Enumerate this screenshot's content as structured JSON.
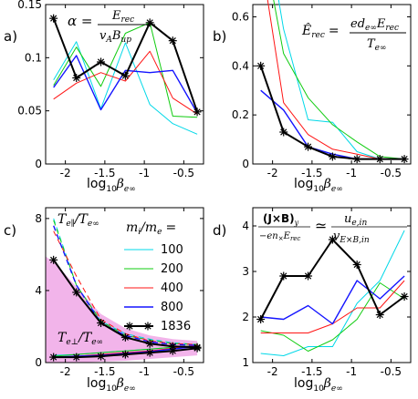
{
  "chart_data": [
    {
      "type": "line",
      "panel_label": "a)",
      "equation": {
        "lhs": "α =",
        "numerator": "E",
        "numerator_sub": "rec",
        "denominator": "v",
        "denominator_sub1": "A",
        "denominator_mid": "B",
        "denominator_sub2": "up"
      },
      "xlabel": "log",
      "xlabel_sub": "10",
      "xlabel_var": "β",
      "xlabel_var_sub": "e∞",
      "x": [
        -2.15,
        -1.86,
        -1.55,
        -1.24,
        -0.93,
        -0.64,
        -0.33
      ],
      "xlim": [
        -2.25,
        -0.25
      ],
      "xticks": [
        "-2",
        "-1.5",
        "-1",
        "-0.5"
      ],
      "xtick_values": [
        -2,
        -1.5,
        -1,
        -0.5
      ],
      "ylim": [
        0,
        0.15
      ],
      "yticks": [
        "0",
        "0.05",
        "0.1",
        "0.15"
      ],
      "ytick_values": [
        0,
        0.05,
        0.1,
        0.15
      ],
      "series": [
        {
          "name": "100",
          "color": "#00d8e8",
          "width": 1,
          "marker": false,
          "values": [
            0.079,
            0.115,
            0.052,
            0.114,
            0.056,
            0.038,
            0.028
          ]
        },
        {
          "name": "200",
          "color": "#10cc10",
          "width": 1,
          "marker": false,
          "values": [
            0.074,
            0.11,
            0.073,
            0.123,
            0.133,
            0.045,
            0.044
          ]
        },
        {
          "name": "400",
          "color": "#ff1414",
          "width": 1,
          "marker": false,
          "values": [
            0.061,
            0.076,
            0.086,
            0.078,
            0.106,
            0.062,
            0.047
          ]
        },
        {
          "name": "800",
          "color": "#1414ff",
          "width": 1.4,
          "marker": false,
          "values": [
            0.072,
            0.102,
            0.051,
            0.088,
            0.086,
            0.088,
            0.048
          ]
        },
        {
          "name": "1836",
          "color": "#000000",
          "width": 2,
          "marker": true,
          "values": [
            0.137,
            0.081,
            0.096,
            0.083,
            0.133,
            0.116,
            0.049
          ]
        }
      ]
    },
    {
      "type": "line",
      "panel_label": "b)",
      "equation": {
        "lhs": "Ê",
        "lhs_sub": "rec",
        "eq": "=",
        "numerator": "ed",
        "numerator_sub1": "e∞",
        "numerator_mid": "E",
        "numerator_sub2": "rec",
        "denominator": "T",
        "denominator_sub": "e∞"
      },
      "xlabel": "log",
      "xlabel_sub": "10",
      "xlabel_var": "β",
      "xlabel_var_sub": "e∞",
      "x": [
        -2.15,
        -1.86,
        -1.55,
        -1.24,
        -0.93,
        -0.64,
        -0.33
      ],
      "xlim": [
        -2.25,
        -0.25
      ],
      "xticks": [
        "-2",
        "-1.5",
        "-1",
        "-0.5"
      ],
      "xtick_values": [
        -2,
        -1.5,
        -1,
        -0.5
      ],
      "ylim": [
        0,
        0.65
      ],
      "yticks": [
        "0",
        "0.2",
        "0.4",
        "0.6"
      ],
      "ytick_values": [
        0,
        0.2,
        0.4,
        0.6
      ],
      "series": [
        {
          "name": "100",
          "color": "#00d8e8",
          "width": 1,
          "marker": false,
          "values": [
            1.1,
            0.55,
            0.18,
            0.17,
            0.05,
            0.02,
            0.02
          ]
        },
        {
          "name": "200",
          "color": "#10cc10",
          "width": 1,
          "marker": false,
          "values": [
            0.95,
            0.45,
            0.27,
            0.16,
            0.09,
            0.03,
            0.02
          ]
        },
        {
          "name": "400",
          "color": "#ff1414",
          "width": 1,
          "marker": false,
          "values": [
            0.85,
            0.25,
            0.12,
            0.06,
            0.04,
            0.02,
            0.02
          ]
        },
        {
          "name": "800",
          "color": "#1414ff",
          "width": 1.4,
          "marker": false,
          "values": [
            0.3,
            0.22,
            0.07,
            0.04,
            0.02,
            0.02,
            0.02
          ]
        },
        {
          "name": "1836",
          "color": "#000000",
          "width": 2,
          "marker": true,
          "values": [
            0.4,
            0.13,
            0.07,
            0.03,
            0.02,
            0.02,
            0.02
          ]
        }
      ]
    },
    {
      "type": "line",
      "panel_label": "c)",
      "annot_upper": {
        "num": "T",
        "num_sub": "e∥",
        "slash": "/",
        "den": "T",
        "den_sub": "e∞"
      },
      "annot_lower": {
        "num": "T",
        "num_sub": "e⊥",
        "slash": "/",
        "den": "T",
        "den_sub": "e∞"
      },
      "legend_title": {
        "a": "m",
        "a_sub": "i",
        "slash": "/",
        "b": "m",
        "b_sub": "e",
        "eq": "="
      },
      "legend_placement": "right",
      "xlabel": "log",
      "xlabel_sub": "10",
      "xlabel_var": "β",
      "xlabel_var_sub": "e∞",
      "x": [
        -2.15,
        -1.86,
        -1.55,
        -1.24,
        -0.93,
        -0.64,
        -0.33
      ],
      "xlim": [
        -2.25,
        -0.25
      ],
      "xticks": [
        "-2",
        "-1.5",
        "-1",
        "-0.5"
      ],
      "xtick_values": [
        -2,
        -1.5,
        -1,
        -0.5
      ],
      "ylim": [
        0,
        8.6
      ],
      "yticks": [
        "0",
        "4",
        "8"
      ],
      "ytick_values": [
        0,
        4,
        8
      ],
      "shaded_band": {
        "color": "#f2b4ea",
        "x": [
          -2.25,
          -2.1,
          -1.86,
          -1.55,
          -1.24,
          -0.93,
          -0.64,
          -0.33
        ],
        "upper": [
          5.9,
          5.4,
          4.2,
          2.7,
          1.9,
          1.5,
          1.3,
          1.2
        ],
        "lower": [
          0.0,
          0.0,
          0.0,
          0.05,
          0.1,
          0.2,
          0.3,
          0.4
        ]
      },
      "series": [
        {
          "name": "100",
          "color": "#00d8e8",
          "width": 1,
          "marker": false,
          "parallel": [
            8.0,
            4.3,
            2.3,
            1.6,
            1.3,
            1.1,
            1.0
          ],
          "perp": [
            0.4,
            0.45,
            0.55,
            0.65,
            0.75,
            0.85,
            0.95
          ]
        },
        {
          "name": "200",
          "color": "#10cc10",
          "width": 1,
          "marker": false,
          "parallel": [
            7.9,
            4.3,
            2.3,
            1.5,
            1.25,
            1.05,
            1.0
          ],
          "perp": [
            0.35,
            0.45,
            0.55,
            0.65,
            0.75,
            0.85,
            0.95
          ]
        },
        {
          "name": "400",
          "color": "#ff1414",
          "width": 1,
          "marker": false,
          "parallel": [
            7.3,
            4.8,
            2.4,
            1.6,
            1.2,
            1.05,
            1.0
          ],
          "perp": [
            0.3,
            0.35,
            0.45,
            0.55,
            0.65,
            0.8,
            0.95
          ]
        },
        {
          "name": "800",
          "color": "#1414ff",
          "width": 1.4,
          "marker": false,
          "parallel": [
            7.6,
            4.3,
            2.2,
            1.5,
            1.15,
            1.0,
            0.95
          ],
          "perp": [
            0.3,
            0.35,
            0.4,
            0.5,
            0.6,
            0.75,
            0.9
          ]
        },
        {
          "name": "1836",
          "color": "#000000",
          "width": 2,
          "marker": true,
          "parallel": [
            5.7,
            3.9,
            2.2,
            1.4,
            1.05,
            0.9,
            0.85
          ],
          "perp": [
            0.3,
            0.3,
            0.35,
            0.45,
            0.55,
            0.65,
            0.8
          ]
        }
      ]
    },
    {
      "type": "line",
      "panel_label": "d)",
      "equation": {
        "lhs_num": "(J×B)",
        "lhs_num_sub": "y",
        "lhs_den": "−en",
        "lhs_den_sub1": "×",
        "lhs_den_mid": "E",
        "lhs_den_sub2": "rec",
        "approx": "≃",
        "rhs_num": "u",
        "rhs_num_sub": "e,in",
        "rhs_den": "v",
        "rhs_den_sub": "E×B,in"
      },
      "xlabel": "log",
      "xlabel_sub": "10",
      "xlabel_var": "β",
      "xlabel_var_sub": "e∞",
      "x": [
        -2.15,
        -1.86,
        -1.55,
        -1.24,
        -0.93,
        -0.64,
        -0.33
      ],
      "xlim": [
        -2.25,
        -0.25
      ],
      "xticks": [
        "-2",
        "-1.5",
        "-1",
        "-0.5"
      ],
      "xtick_values": [
        -2,
        -1.5,
        -1,
        -0.5
      ],
      "ylim": [
        1,
        4.4
      ],
      "yticks": [
        "1",
        "2",
        "3",
        "4"
      ],
      "ytick_values": [
        1,
        2,
        3,
        4
      ],
      "series": [
        {
          "name": "100",
          "color": "#00d8e8",
          "width": 1,
          "marker": false,
          "values": [
            1.2,
            1.15,
            1.35,
            1.35,
            2.3,
            2.8,
            3.9
          ]
        },
        {
          "name": "200",
          "color": "#10cc10",
          "width": 1,
          "marker": false,
          "values": [
            1.7,
            1.6,
            1.25,
            1.5,
            1.95,
            2.75,
            2.4
          ]
        },
        {
          "name": "400",
          "color": "#ff1414",
          "width": 1,
          "marker": false,
          "values": [
            1.65,
            1.65,
            1.65,
            1.85,
            2.2,
            2.2,
            2.8
          ]
        },
        {
          "name": "800",
          "color": "#1414ff",
          "width": 1.4,
          "marker": false,
          "values": [
            2.0,
            1.95,
            2.25,
            1.85,
            2.8,
            2.4,
            2.9
          ]
        },
        {
          "name": "1836",
          "color": "#000000",
          "width": 2,
          "marker": true,
          "values": [
            1.95,
            2.9,
            2.9,
            3.7,
            3.15,
            2.05,
            2.45
          ]
        }
      ]
    }
  ]
}
